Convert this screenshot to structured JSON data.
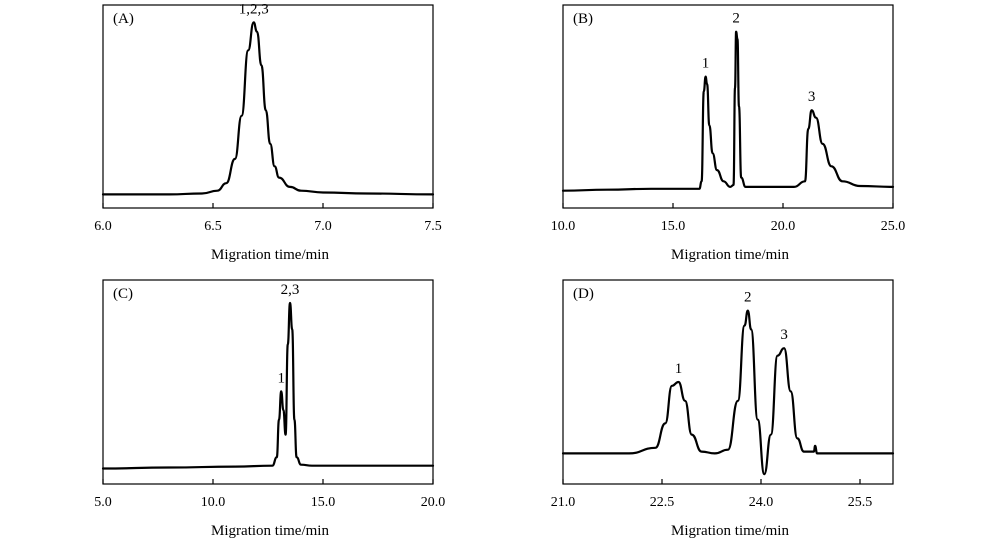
{
  "chart_data": [
    {
      "type": "line",
      "panel_label": "(A)",
      "xlabel": "Migration time/min",
      "xlim": [
        6.0,
        7.5
      ],
      "xticks": [
        6.0,
        6.5,
        7.0,
        7.5
      ],
      "xtick_labels": [
        "6.0",
        "6.5",
        "7.0",
        "7.5"
      ],
      "ylim": [
        0,
        1
      ],
      "grid": false,
      "series": [
        {
          "x": [
            6.0,
            6.3,
            6.45,
            6.52,
            6.56,
            6.6,
            6.63,
            6.66,
            6.685,
            6.7,
            6.72,
            6.74,
            6.76,
            6.78,
            6.8,
            6.85,
            6.9,
            7.0,
            7.2,
            7.5
          ],
          "y": [
            0.03,
            0.03,
            0.035,
            0.05,
            0.09,
            0.22,
            0.45,
            0.8,
            0.95,
            0.9,
            0.72,
            0.48,
            0.3,
            0.18,
            0.12,
            0.07,
            0.05,
            0.04,
            0.035,
            0.03
          ]
        }
      ],
      "peaks": [
        {
          "label": "1,2,3",
          "x": 6.685,
          "y": 0.95
        }
      ]
    },
    {
      "type": "line",
      "panel_label": "(B)",
      "xlabel": "Migration time/min",
      "xlim": [
        10.0,
        25.0
      ],
      "xticks": [
        10.0,
        15.0,
        20.0,
        25.0
      ],
      "xtick_labels": [
        "10.0",
        "15.0",
        "20.0",
        "25.0"
      ],
      "ylim": [
        0,
        1
      ],
      "grid": false,
      "series": [
        {
          "x": [
            10.0,
            12.0,
            14.0,
            16.2,
            16.3,
            16.4,
            16.48,
            16.55,
            16.65,
            16.8,
            17.0,
            17.3,
            17.6,
            17.75,
            17.82,
            17.87,
            17.93,
            18.0,
            18.1,
            18.3,
            19.0,
            20.5,
            21.0,
            21.15,
            21.3,
            21.5,
            21.8,
            22.2,
            22.7,
            23.5,
            25.0
          ],
          "y": [
            0.05,
            0.055,
            0.06,
            0.06,
            0.1,
            0.58,
            0.66,
            0.62,
            0.4,
            0.25,
            0.16,
            0.1,
            0.07,
            0.08,
            0.6,
            0.9,
            0.86,
            0.5,
            0.12,
            0.07,
            0.07,
            0.07,
            0.1,
            0.38,
            0.48,
            0.44,
            0.3,
            0.18,
            0.1,
            0.075,
            0.07
          ]
        }
      ],
      "peaks": [
        {
          "label": "1",
          "x": 16.48,
          "y": 0.66
        },
        {
          "label": "2",
          "x": 17.87,
          "y": 0.9
        },
        {
          "label": "3",
          "x": 21.3,
          "y": 0.48
        }
      ]
    },
    {
      "type": "line",
      "panel_label": "(C)",
      "xlabel": "Migration time/min",
      "xlim": [
        5.0,
        20.0
      ],
      "xticks": [
        5.0,
        10.0,
        15.0,
        20.0
      ],
      "xtick_labels": [
        "5.0",
        "10.0",
        "15.0",
        "20.0"
      ],
      "ylim": [
        0,
        1
      ],
      "grid": false,
      "series": [
        {
          "x": [
            5.0,
            8.0,
            11.0,
            12.7,
            12.9,
            13.0,
            13.1,
            13.2,
            13.3,
            13.4,
            13.5,
            13.6,
            13.7,
            13.8,
            14.0,
            14.5,
            16.0,
            20.0
          ],
          "y": [
            0.04,
            0.045,
            0.05,
            0.055,
            0.1,
            0.3,
            0.45,
            0.35,
            0.22,
            0.7,
            0.92,
            0.78,
            0.3,
            0.1,
            0.06,
            0.055,
            0.055,
            0.055
          ]
        }
      ],
      "peaks": [
        {
          "label": "1",
          "x": 13.1,
          "y": 0.45
        },
        {
          "label": "2,3",
          "x": 13.5,
          "y": 0.92
        }
      ]
    },
    {
      "type": "line",
      "panel_label": "(D)",
      "xlabel": "Migration time/min",
      "xlim": [
        21.0,
        26.0
      ],
      "xticks": [
        21.0,
        22.5,
        24.0,
        25.5
      ],
      "xtick_labels": [
        "21.0",
        "22.5",
        "24.0",
        "25.5"
      ],
      "ylim": [
        0,
        1
      ],
      "grid": false,
      "series": [
        {
          "x": [
            21.0,
            22.0,
            22.4,
            22.55,
            22.65,
            22.75,
            22.85,
            22.95,
            23.1,
            23.3,
            23.5,
            23.65,
            23.75,
            23.8,
            23.85,
            23.95,
            24.05,
            24.15,
            24.25,
            24.35,
            24.45,
            24.55,
            24.65,
            24.8,
            24.82,
            24.85,
            25.2,
            26.0
          ],
          "y": [
            0.12,
            0.12,
            0.15,
            0.28,
            0.48,
            0.5,
            0.4,
            0.22,
            0.13,
            0.12,
            0.14,
            0.4,
            0.8,
            0.88,
            0.78,
            0.3,
            0.01,
            0.22,
            0.64,
            0.68,
            0.45,
            0.2,
            0.13,
            0.13,
            0.16,
            0.12,
            0.12,
            0.12
          ]
        }
      ],
      "peaks": [
        {
          "label": "1",
          "x": 22.75,
          "y": 0.5
        },
        {
          "label": "2",
          "x": 23.8,
          "y": 0.88
        },
        {
          "label": "3",
          "x": 24.35,
          "y": 0.68
        }
      ]
    }
  ]
}
